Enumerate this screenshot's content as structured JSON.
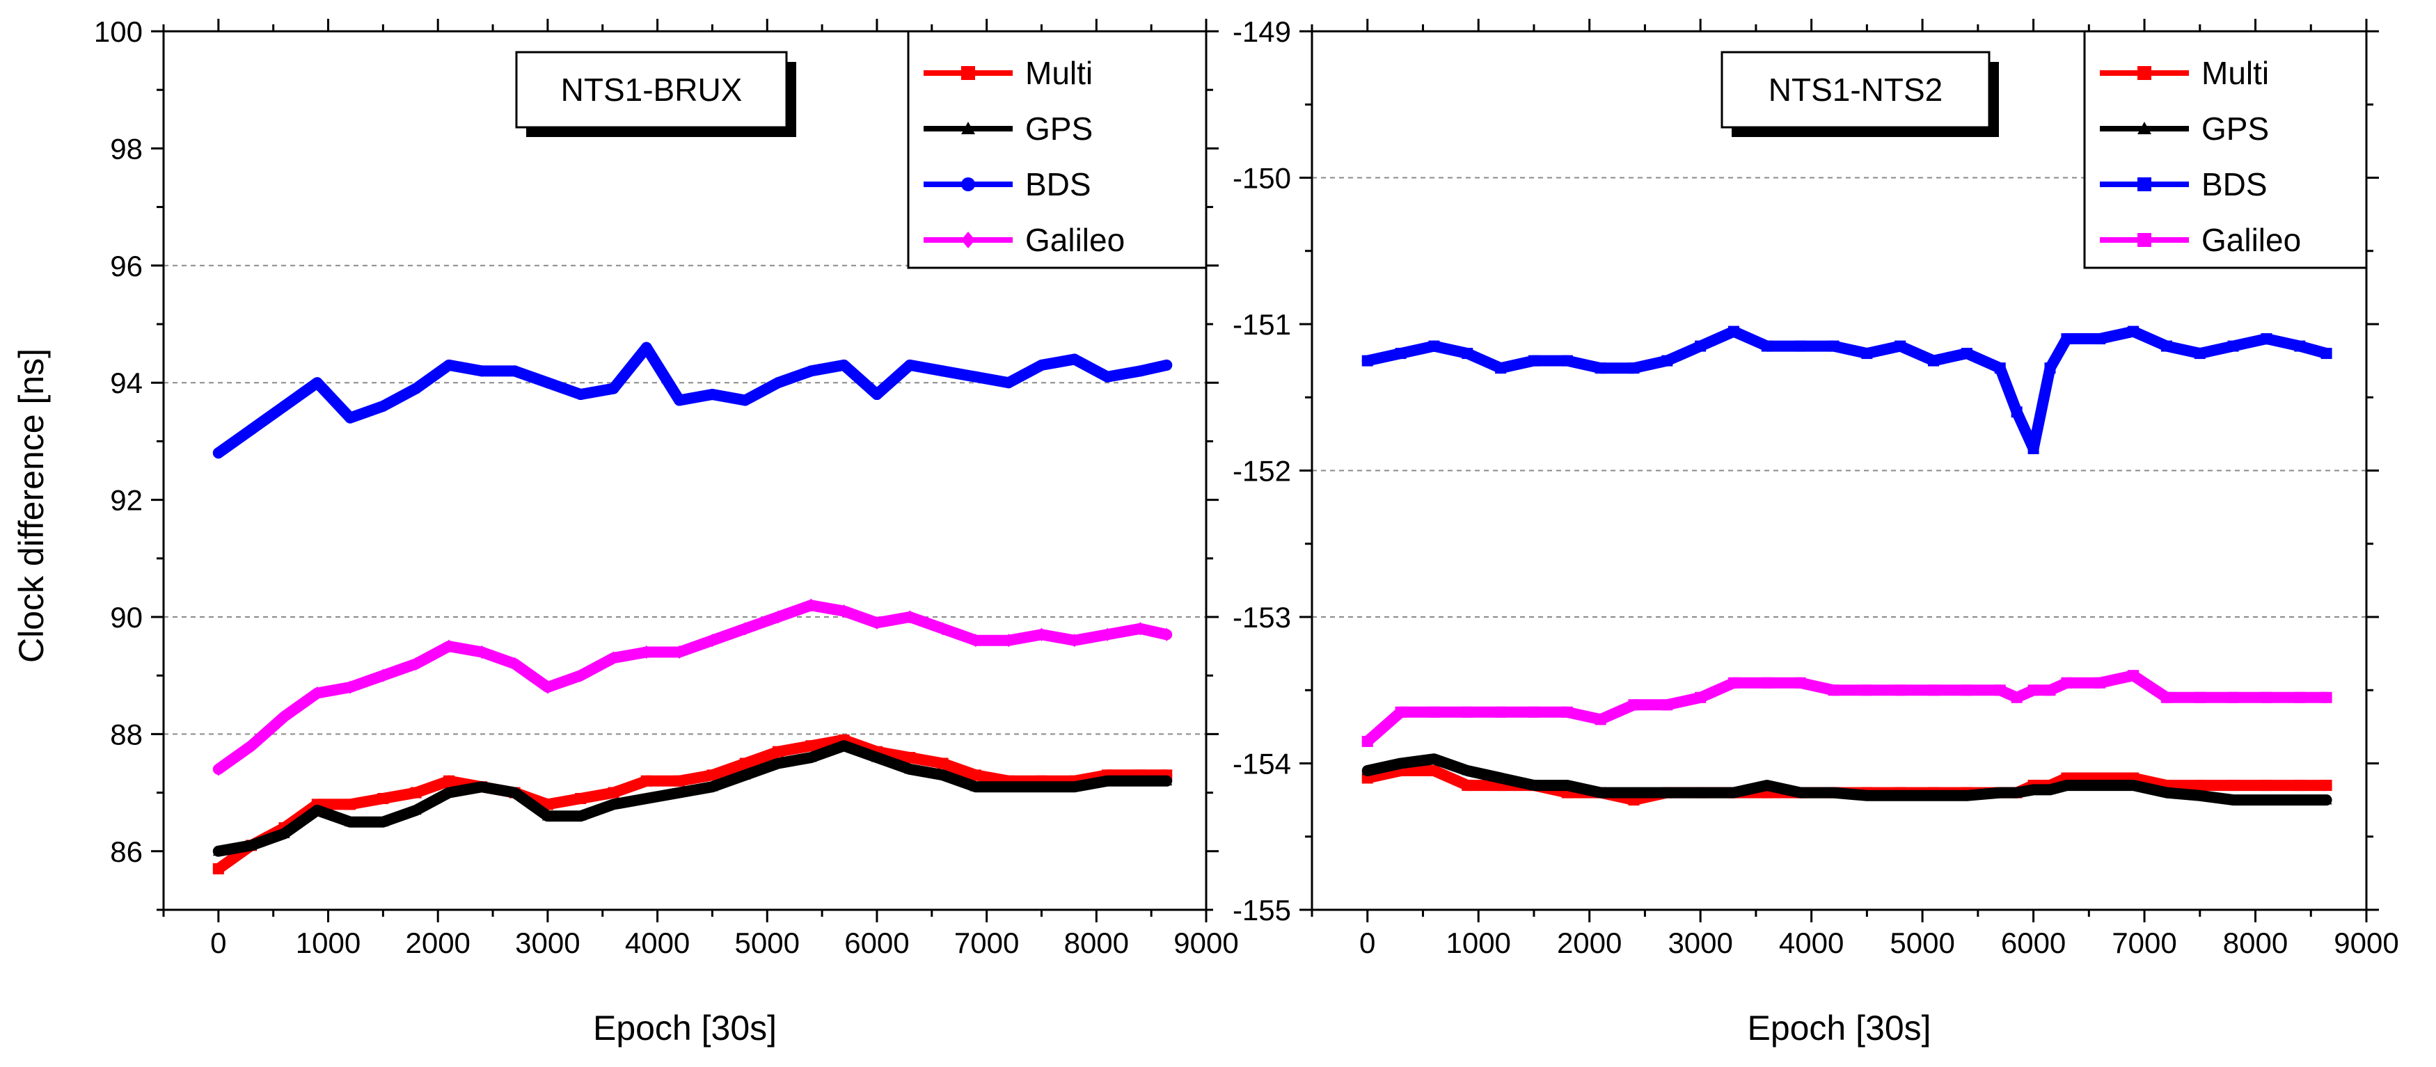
{
  "figure": {
    "ylabel": "Clock difference [ns]"
  },
  "chart_data": [
    {
      "type": "line",
      "title": "NTS1-BRUX",
      "xlabel": "Epoch [30s]",
      "ylabel": "Clock difference [ns]",
      "xlim": [
        -500,
        9000
      ],
      "ylim": [
        85,
        100
      ],
      "xticks": [
        0,
        1000,
        2000,
        3000,
        4000,
        5000,
        6000,
        7000,
        8000,
        9000
      ],
      "yticks": [
        86,
        88,
        90,
        92,
        94,
        96,
        98,
        100
      ],
      "grid_y": [
        88,
        90,
        94,
        96
      ],
      "legend_position": "top-right",
      "x": [
        0,
        300,
        600,
        900,
        1200,
        1500,
        1800,
        2100,
        2400,
        2700,
        3000,
        3300,
        3600,
        3900,
        4200,
        4500,
        4800,
        5100,
        5400,
        5700,
        6000,
        6300,
        6600,
        6900,
        7200,
        7500,
        7800,
        8100,
        8400,
        8640
      ],
      "series": [
        {
          "name": "Multi",
          "color": "#ff0000",
          "marker": "square",
          "values": [
            85.7,
            86.1,
            86.4,
            86.8,
            86.8,
            86.9,
            87.0,
            87.2,
            87.1,
            87.0,
            86.8,
            86.9,
            87.0,
            87.2,
            87.2,
            87.3,
            87.5,
            87.7,
            87.8,
            87.9,
            87.7,
            87.6,
            87.5,
            87.3,
            87.2,
            87.2,
            87.2,
            87.3,
            87.3,
            87.3
          ]
        },
        {
          "name": "GPS",
          "color": "#000000",
          "marker": "triangle",
          "values": [
            86.0,
            86.1,
            86.3,
            86.7,
            86.5,
            86.5,
            86.7,
            87.0,
            87.1,
            87.0,
            86.6,
            86.6,
            86.8,
            86.9,
            87.0,
            87.1,
            87.3,
            87.5,
            87.6,
            87.8,
            87.6,
            87.4,
            87.3,
            87.1,
            87.1,
            87.1,
            87.1,
            87.2,
            87.2,
            87.2
          ]
        },
        {
          "name": "BDS",
          "color": "#0000ff",
          "marker": "circle",
          "values": [
            92.8,
            93.2,
            93.6,
            94.0,
            93.4,
            93.6,
            93.9,
            94.3,
            94.2,
            94.2,
            94.0,
            93.8,
            93.9,
            94.6,
            93.7,
            93.8,
            93.7,
            94.0,
            94.2,
            94.3,
            93.8,
            94.3,
            94.2,
            94.1,
            94.0,
            94.3,
            94.4,
            94.1,
            94.2,
            94.3
          ]
        },
        {
          "name": "Galileo",
          "color": "#ff00ff",
          "marker": "diamond",
          "values": [
            87.4,
            87.8,
            88.3,
            88.7,
            88.8,
            89.0,
            89.2,
            89.5,
            89.4,
            89.2,
            88.8,
            89.0,
            89.3,
            89.4,
            89.4,
            89.6,
            89.8,
            90.0,
            90.2,
            90.1,
            89.9,
            90.0,
            89.8,
            89.6,
            89.6,
            89.7,
            89.6,
            89.7,
            89.8,
            89.7
          ]
        }
      ]
    },
    {
      "type": "line",
      "title": "NTS1-NTS2",
      "xlabel": "Epoch [30s]",
      "ylabel": "",
      "xlim": [
        -500,
        9000
      ],
      "ylim": [
        -155,
        -149
      ],
      "xticks": [
        0,
        1000,
        2000,
        3000,
        4000,
        5000,
        6000,
        7000,
        8000,
        9000
      ],
      "yticks": [
        -155,
        -154,
        -153,
        -152,
        -151,
        -150,
        -149
      ],
      "grid_y": [
        -150,
        -152,
        -153
      ],
      "legend_position": "top-right",
      "x": [
        0,
        300,
        600,
        900,
        1200,
        1500,
        1800,
        2100,
        2400,
        2700,
        3000,
        3300,
        3600,
        3900,
        4200,
        4500,
        4800,
        5100,
        5400,
        5700,
        5850,
        6000,
        6150,
        6300,
        6600,
        6900,
        7200,
        7500,
        7800,
        8100,
        8400,
        8640
      ],
      "series": [
        {
          "name": "Multi",
          "color": "#ff0000",
          "marker": "square",
          "values": [
            -154.1,
            -154.05,
            -154.05,
            -154.15,
            -154.15,
            -154.15,
            -154.2,
            -154.2,
            -154.25,
            -154.2,
            -154.2,
            -154.2,
            -154.2,
            -154.2,
            -154.2,
            -154.2,
            -154.2,
            -154.2,
            -154.2,
            -154.2,
            -154.2,
            -154.15,
            -154.15,
            -154.1,
            -154.1,
            -154.1,
            -154.15,
            -154.15,
            -154.15,
            -154.15,
            -154.15,
            -154.15
          ]
        },
        {
          "name": "GPS",
          "color": "#000000",
          "marker": "triangle",
          "values": [
            -154.05,
            -154.0,
            -153.97,
            -154.05,
            -154.1,
            -154.15,
            -154.15,
            -154.2,
            -154.2,
            -154.2,
            -154.2,
            -154.2,
            -154.15,
            -154.2,
            -154.2,
            -154.22,
            -154.22,
            -154.22,
            -154.22,
            -154.2,
            -154.2,
            -154.18,
            -154.18,
            -154.15,
            -154.15,
            -154.15,
            -154.2,
            -154.22,
            -154.25,
            -154.25,
            -154.25,
            -154.25
          ]
        },
        {
          "name": "BDS",
          "color": "#0000ff",
          "marker": "square",
          "values": [
            -151.25,
            -151.2,
            -151.15,
            -151.2,
            -151.3,
            -151.25,
            -151.25,
            -151.3,
            -151.3,
            -151.25,
            -151.15,
            -151.05,
            -151.15,
            -151.15,
            -151.15,
            -151.2,
            -151.15,
            -151.25,
            -151.2,
            -151.3,
            -151.6,
            -151.85,
            -151.3,
            -151.1,
            -151.1,
            -151.05,
            -151.15,
            -151.2,
            -151.15,
            -151.1,
            -151.15,
            -151.2
          ]
        },
        {
          "name": "Galileo",
          "color": "#ff00ff",
          "marker": "square",
          "values": [
            -153.85,
            -153.65,
            -153.65,
            -153.65,
            -153.65,
            -153.65,
            -153.65,
            -153.7,
            -153.6,
            -153.6,
            -153.55,
            -153.45,
            -153.45,
            -153.45,
            -153.5,
            -153.5,
            -153.5,
            -153.5,
            -153.5,
            -153.5,
            -153.55,
            -153.5,
            -153.5,
            -153.45,
            -153.45,
            -153.4,
            -153.55,
            -153.55,
            -153.55,
            -153.55,
            -153.55,
            -153.55
          ]
        }
      ]
    }
  ]
}
